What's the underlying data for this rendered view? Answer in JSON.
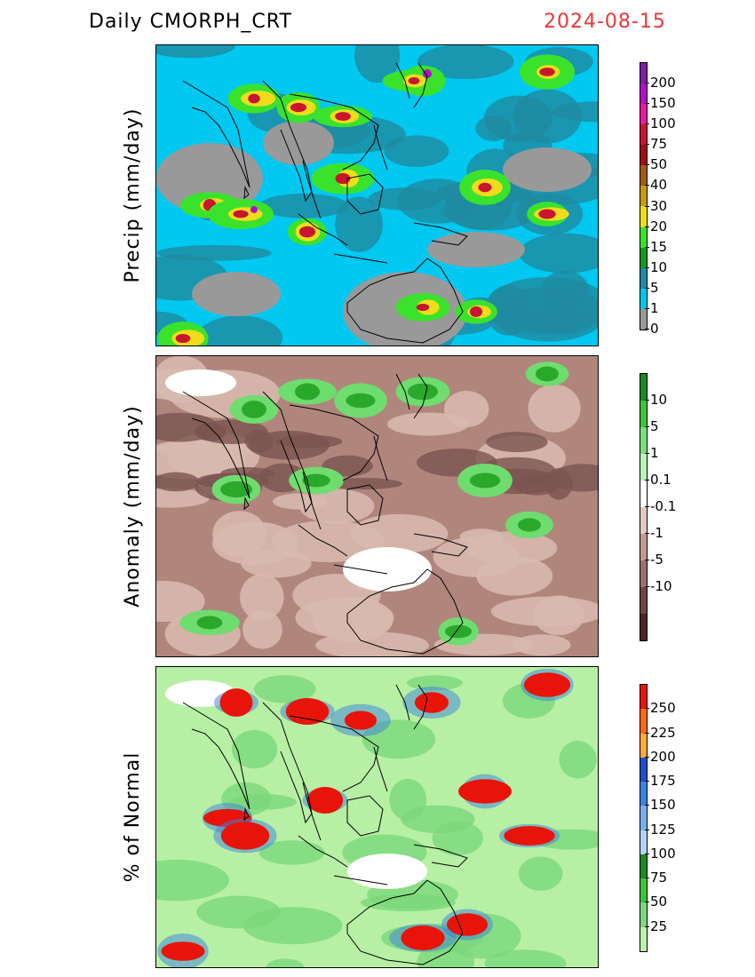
{
  "header": {
    "left_title": "Daily CMORPH_CRT",
    "right_title": "2024-08-15"
  },
  "panels": [
    {
      "id": "precip",
      "ylabel": "Precip (mm/day)",
      "colorbar": {
        "colors": [
          "#7a1fa6",
          "#b40fc8",
          "#e71c9e",
          "#c81530",
          "#a01010",
          "#a45a10",
          "#c89a10",
          "#f0dc1a",
          "#3ae22c",
          "#119a1f",
          "#1f8aa0",
          "#00c8f0",
          "#999999"
        ],
        "labels": [
          "200",
          "150",
          "100",
          "75",
          "50",
          "40",
          "30",
          "20",
          "15",
          "10",
          "5",
          "1",
          "0"
        ]
      },
      "palette": {
        "land": "#999999",
        "ocean_low": "#00c8f0",
        "ocean_mid": "#1f8aa0",
        "wet1": "#3ae22c",
        "wet2": "#f0dc1a",
        "wet3": "#c81530",
        "wet4": "#b40fc8"
      }
    },
    {
      "id": "anomaly",
      "ylabel": "Anomaly (mm/day)",
      "colorbar": {
        "colors": [
          "#1d8a1d",
          "#3cc43c",
          "#79e079",
          "#b9f3b9",
          "#ffffff",
          "#e3c8c0",
          "#c49a8f",
          "#9b716a",
          "#6e4842",
          "#4a2724"
        ],
        "labels": [
          "10",
          "5",
          "1",
          "0.1",
          "-0.1",
          "-1",
          "-5",
          "-10"
        ]
      },
      "palette": {
        "base": "#b0867c",
        "light": "#d8b9ae",
        "dark": "#7a5450",
        "green": "#2aa82a",
        "lgreen": "#6fdc6f",
        "white": "#ffffff"
      }
    },
    {
      "id": "percent",
      "ylabel": "% of Normal",
      "colorbar": {
        "colors": [
          "#e8140a",
          "#ff6a10",
          "#ffa840",
          "#1f50c8",
          "#3c82e0",
          "#78aef0",
          "#b4d2f6",
          "#1d8a1d",
          "#3cc43c",
          "#7ad87a",
          "#b9f3a9"
        ],
        "labels": [
          "250",
          "225",
          "200",
          "175",
          "150",
          "125",
          "100",
          "75",
          "50",
          "25"
        ]
      },
      "palette": {
        "base": "#b7f0a5",
        "mid": "#7ad87a",
        "red": "#e8140a",
        "blue": "#3c82e0",
        "white": "#ffffff"
      }
    }
  ]
}
